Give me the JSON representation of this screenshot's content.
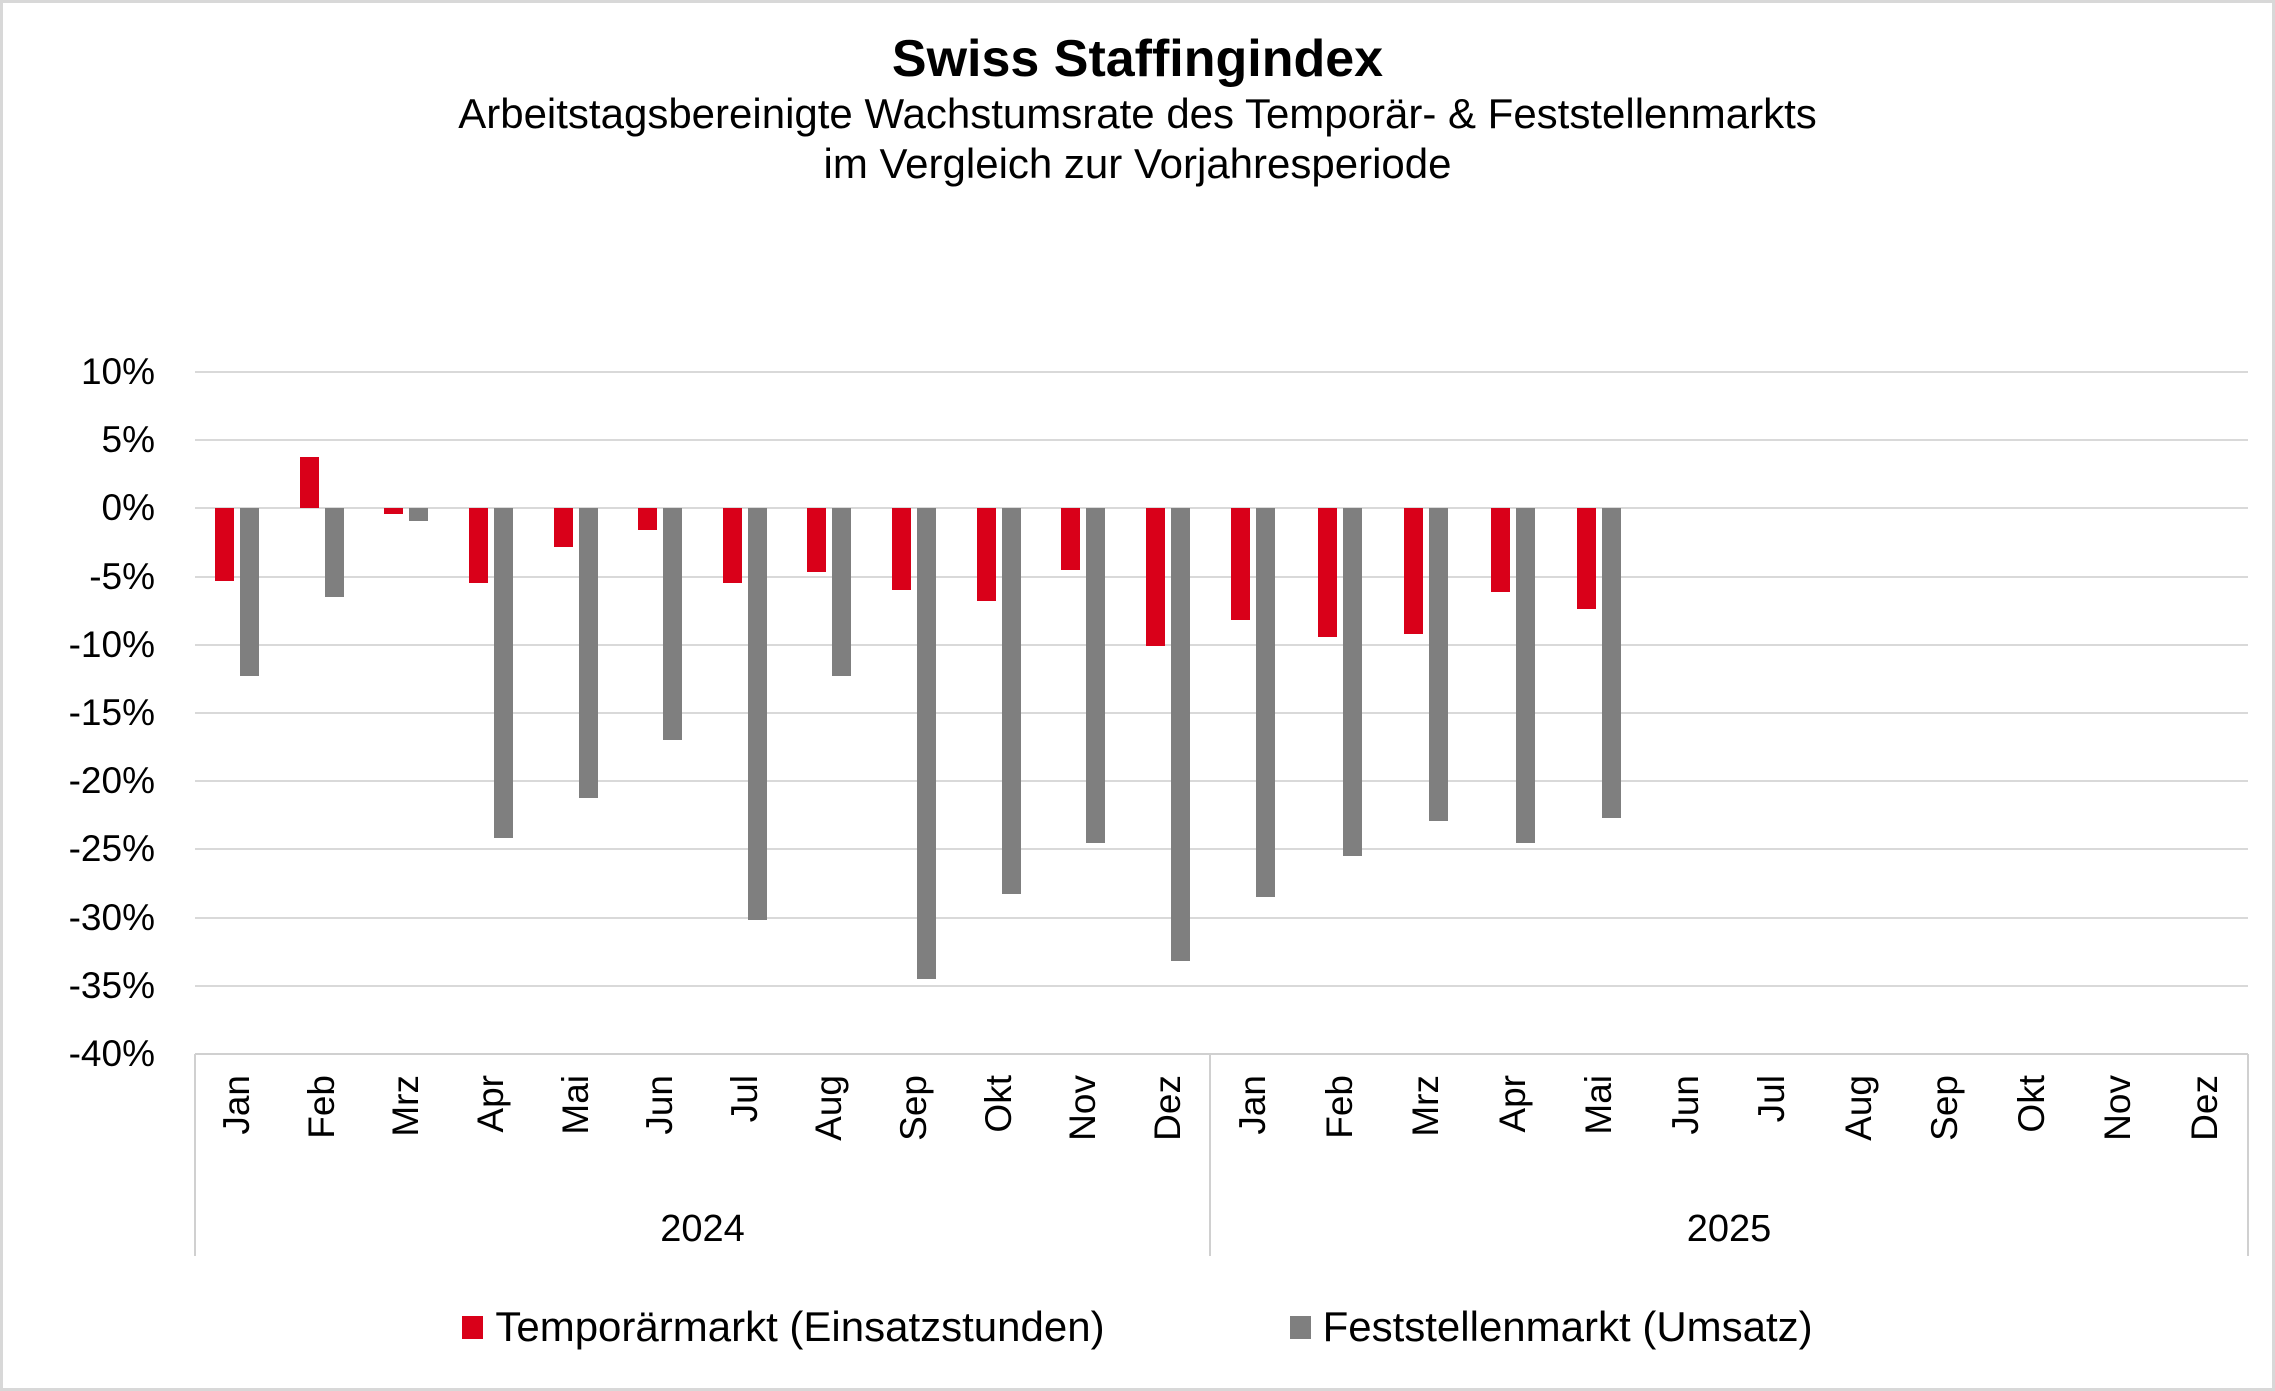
{
  "header": {
    "title": "Swiss Staffingindex",
    "subtitle_line1": "Arbeitstagsbereinigte Wachstumsrate des Temporär- & Feststellenmarkts",
    "subtitle_line2": "im Vergleich zur Vorjahresperiode"
  },
  "colors": {
    "temporaermarkt_red": "#d90019",
    "feststellenmarkt_gray": "#7f7f7f",
    "gridline": "#d9d9d9",
    "axis_line": "#d0d0d0",
    "border": "#d8d8d8",
    "text": "#000000"
  },
  "chart_data": {
    "type": "bar",
    "title": "Swiss Staffingindex",
    "subtitle": "Arbeitstagsbereinigte Wachstumsrate des Temporär- & Feststellenmarkts im Vergleich zur Vorjahresperiode",
    "unit": "%",
    "y_axis": {
      "min": -40,
      "max": 10,
      "step": 5
    },
    "yticks": [
      "10%",
      "5%",
      "0%",
      "-5%",
      "-10%",
      "-15%",
      "-20%",
      "-25%",
      "-30%",
      "-35%",
      "-40%"
    ],
    "grid": true,
    "legend_position": "bottom",
    "x_groups": [
      {
        "year": "2024",
        "categories": [
          "Jan",
          "Feb",
          "Mrz",
          "Apr",
          "Mai",
          "Jun",
          "Jul",
          "Aug",
          "Sep",
          "Okt",
          "Nov",
          "Dez"
        ]
      },
      {
        "year": "2025",
        "categories": [
          "Jan",
          "Feb",
          "Mrz",
          "Apr",
          "Mai",
          "Jun",
          "Jul",
          "Aug",
          "Sep",
          "Okt",
          "Nov",
          "Dez"
        ]
      }
    ],
    "series": [
      {
        "key": "temporaermarkt",
        "name": "Temporärmarkt (Einsatzstunden)",
        "color": "#d90019",
        "values": {
          "2024": [
            -5.3,
            3.8,
            -0.4,
            -5.5,
            -2.8,
            -1.6,
            -5.5,
            -4.7,
            -6.0,
            -6.8,
            -4.5,
            -10.1
          ],
          "2025": [
            -8.2,
            -9.4,
            -9.2,
            -6.1,
            -7.4,
            null,
            null,
            null,
            null,
            null,
            null,
            null
          ]
        }
      },
      {
        "key": "feststellenmarkt",
        "name": "Feststellenmarkt (Umsatz)",
        "color": "#7f7f7f",
        "values": {
          "2024": [
            -12.3,
            -6.5,
            -0.9,
            -24.2,
            -21.2,
            -17.0,
            -30.2,
            -12.3,
            -34.5,
            -28.3,
            -24.5,
            -33.2
          ],
          "2025": [
            -28.5,
            -25.5,
            -22.9,
            -24.5,
            -22.7,
            null,
            null,
            null,
            null,
            null,
            null,
            null
          ]
        }
      }
    ]
  }
}
